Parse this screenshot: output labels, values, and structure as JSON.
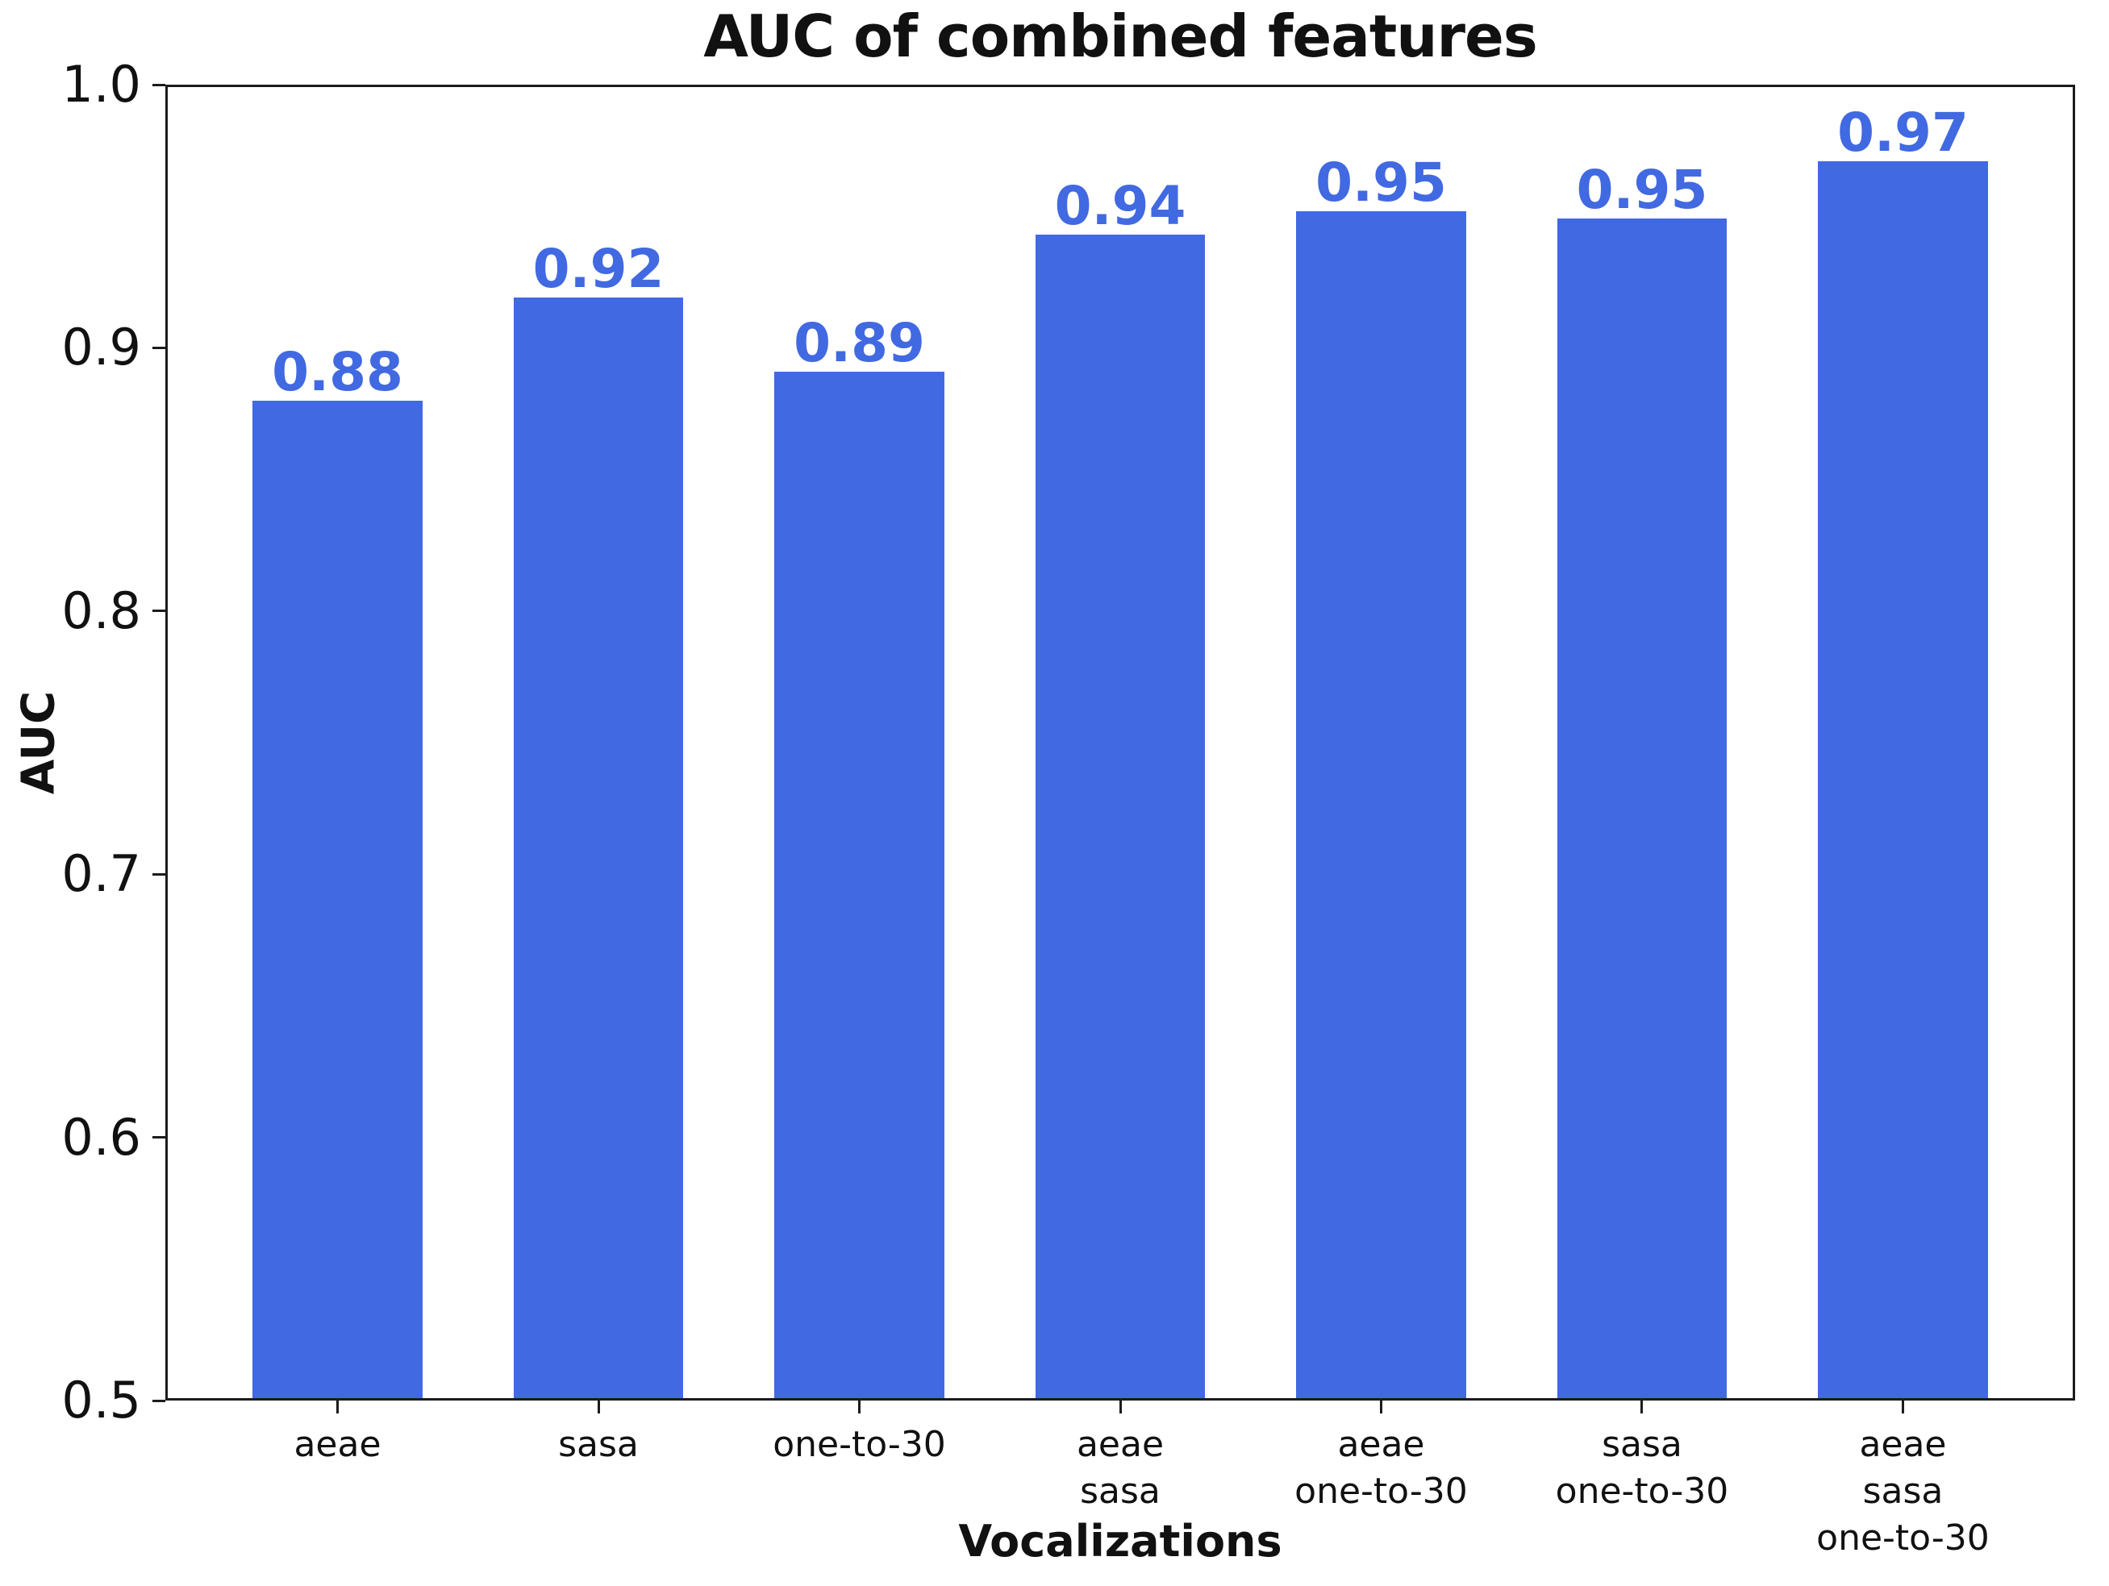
{
  "chart_data": {
    "type": "bar",
    "title": "AUC of combined features",
    "xlabel": "Vocalizations",
    "ylabel": "AUC",
    "categories": [
      "aeae",
      "sasa",
      "one-to-30",
      "aeae\nsasa",
      "aeae\none-to-30",
      "sasa\none-to-30",
      "aeae\nsasa\none-to-30"
    ],
    "values": [
      0.88,
      0.92,
      0.89,
      0.94,
      0.95,
      0.95,
      0.97
    ],
    "values_precise": [
      0.88,
      0.919,
      0.891,
      0.943,
      0.952,
      0.949,
      0.971
    ],
    "value_labels": [
      "0.88",
      "0.92",
      "0.89",
      "0.94",
      "0.95",
      "0.95",
      "0.97"
    ],
    "ylim": [
      0.5,
      1.0
    ],
    "yticks": [
      "1.0",
      "0.9",
      "0.8",
      "0.7",
      "0.6",
      "0.5"
    ],
    "grid": false,
    "legend": null,
    "bar_color": "#4169E1",
    "value_label_color": "#4169E1",
    "axis_color": "#1c1c1c",
    "text_color": "#111111",
    "background_color": "#ffffff"
  }
}
